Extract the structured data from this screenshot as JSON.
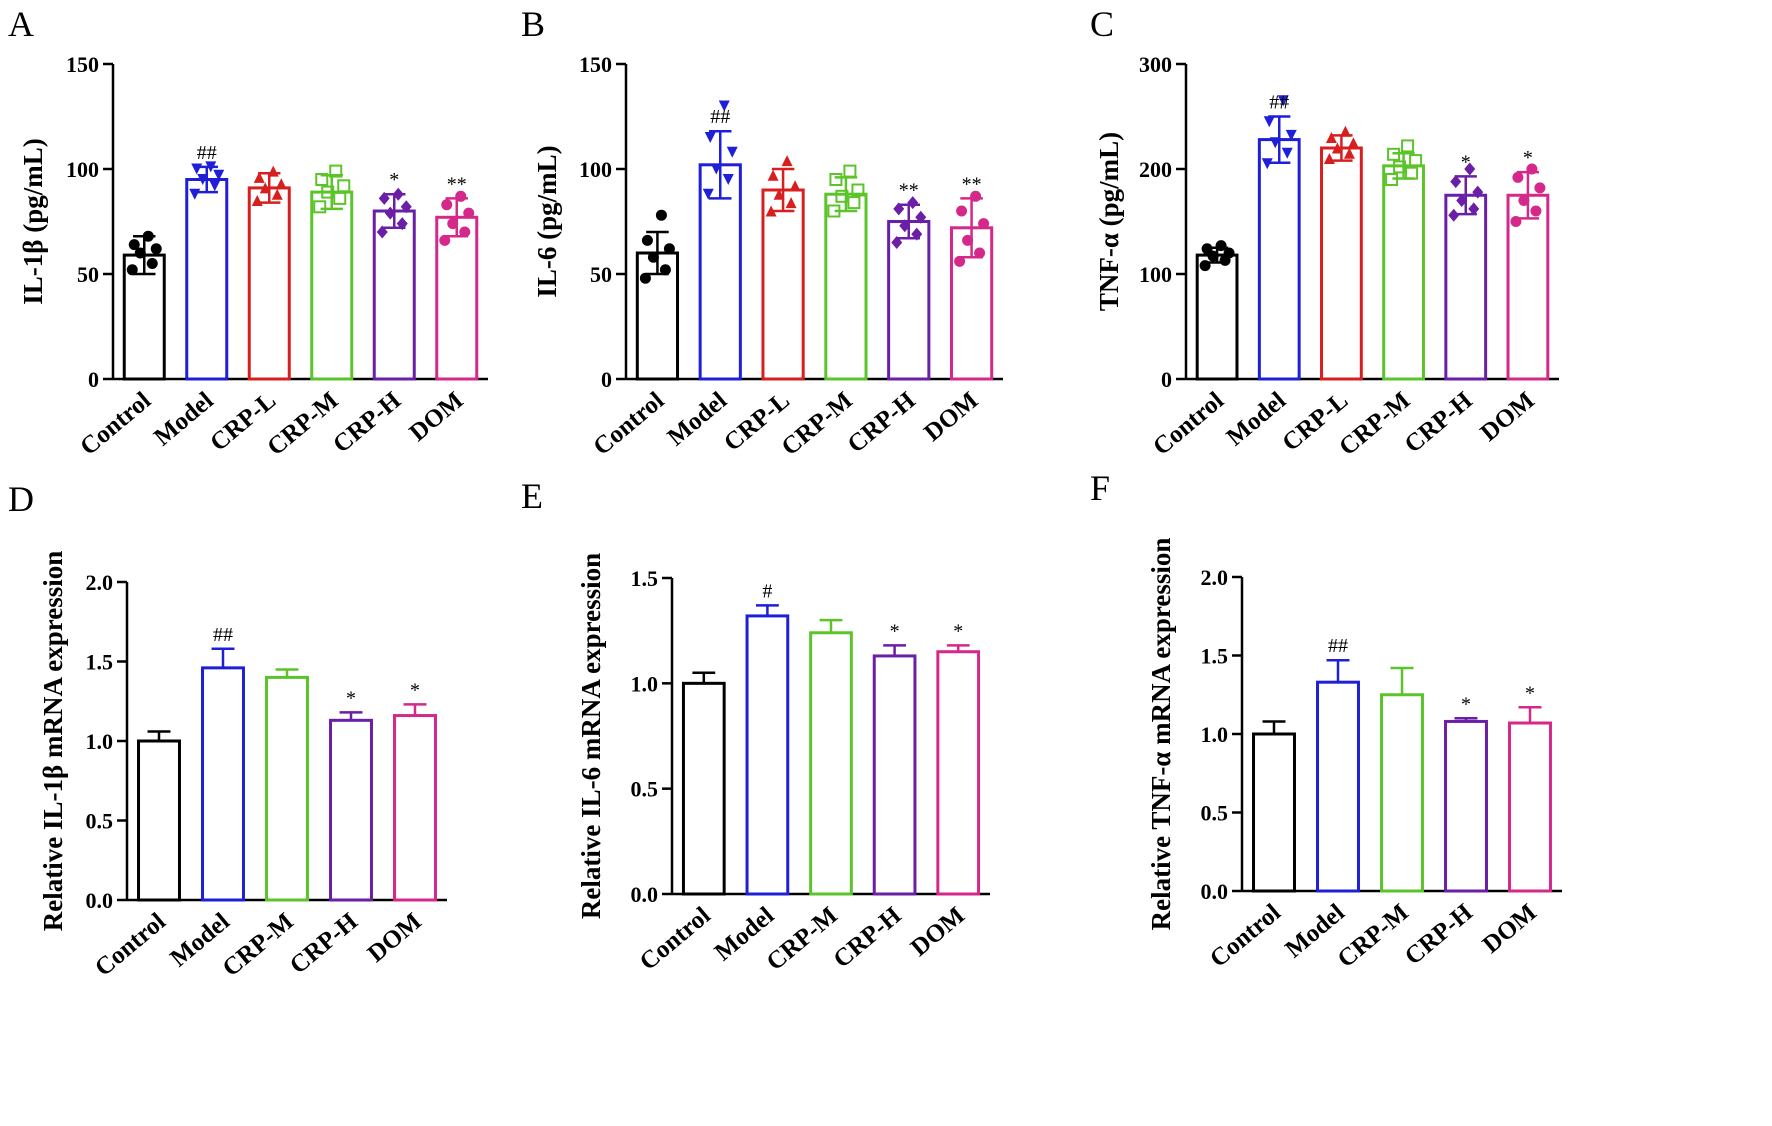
{
  "colors": {
    "Control": "#000000",
    "Model": "#1f1fd8",
    "CRP-L": "#d81f1f",
    "CRP-M": "#5cc42b",
    "CRP-H": "#6b1fa6",
    "DOM": "#d4288a"
  },
  "chart_data": [
    {
      "panel": "A",
      "type": "bar",
      "ylabel": "IL-1β (pg/mL)",
      "ylim": [
        0,
        150
      ],
      "yticks": [
        "0",
        "50",
        "100",
        "150"
      ],
      "categories": [
        "Control",
        "Model",
        "CRP-L",
        "CRP-M",
        "CRP-H",
        "DOM"
      ],
      "values": [
        59,
        95,
        91,
        89,
        80,
        77
      ],
      "errors": [
        9,
        6,
        7,
        8,
        8,
        9
      ],
      "significance": [
        "",
        "##",
        "",
        "",
        "*",
        "**"
      ],
      "points": [
        [
          52,
          55,
          60,
          62,
          64,
          68
        ],
        [
          88,
          92,
          95,
          97,
          100,
          101
        ],
        [
          85,
          88,
          91,
          93,
          96,
          99
        ],
        [
          82,
          86,
          89,
          92,
          95,
          99
        ],
        [
          70,
          74,
          79,
          82,
          86,
          88
        ],
        [
          66,
          70,
          74,
          79,
          83,
          87
        ]
      ],
      "scatter": true
    },
    {
      "panel": "B",
      "type": "bar",
      "ylabel": "IL-6 (pg/mL)",
      "ylim": [
        0,
        150
      ],
      "yticks": [
        "0",
        "50",
        "100",
        "150"
      ],
      "categories": [
        "Control",
        "Model",
        "CRP-L",
        "CRP-M",
        "CRP-H",
        "DOM"
      ],
      "values": [
        60,
        102,
        90,
        88,
        75,
        72
      ],
      "errors": [
        10,
        16,
        10,
        8,
        8,
        14
      ],
      "significance": [
        "",
        "##",
        "",
        "",
        "**",
        "**"
      ],
      "points": [
        [
          48,
          52,
          58,
          62,
          66,
          78
        ],
        [
          88,
          95,
          100,
          108,
          115,
          130
        ],
        [
          80,
          84,
          88,
          92,
          97,
          104
        ],
        [
          80,
          84,
          87,
          90,
          95,
          99
        ],
        [
          65,
          69,
          73,
          77,
          81,
          84
        ],
        [
          56,
          60,
          66,
          74,
          80,
          87
        ]
      ],
      "scatter": true
    },
    {
      "panel": "C",
      "type": "bar",
      "ylabel": "TNF-α (pg/mL)",
      "ylim": [
        0,
        300
      ],
      "yticks": [
        "0",
        "100",
        "200",
        "300"
      ],
      "categories": [
        "Control",
        "Model",
        "CRP-L",
        "CRP-M",
        "CRP-H",
        "DOM"
      ],
      "values": [
        118,
        228,
        220,
        203,
        175,
        175
      ],
      "errors": [
        7,
        22,
        12,
        12,
        18,
        22
      ],
      "significance": [
        "",
        "##",
        "",
        "",
        "*",
        "*"
      ],
      "points": [
        [
          108,
          113,
          117,
          120,
          124,
          127
        ],
        [
          205,
          215,
          225,
          232,
          245,
          265
        ],
        [
          210,
          215,
          220,
          225,
          230,
          236
        ],
        [
          190,
          196,
          202,
          208,
          214,
          222
        ],
        [
          156,
          162,
          170,
          178,
          188,
          200
        ],
        [
          150,
          160,
          170,
          182,
          192,
          200
        ]
      ],
      "scatter": true
    },
    {
      "panel": "D",
      "type": "bar",
      "ylabel": "Relative IL-1β  mRNA expression",
      "ylim": [
        0,
        2.0
      ],
      "yticks": [
        "0.0",
        "0.5",
        "1.0",
        "1.5",
        "2.0"
      ],
      "categories": [
        "Control",
        "Model",
        "CRP-M",
        "CRP-H",
        "DOM"
      ],
      "values": [
        1.0,
        1.46,
        1.4,
        1.13,
        1.16
      ],
      "errors": [
        0.06,
        0.12,
        0.05,
        0.05,
        0.07
      ],
      "significance": [
        "",
        "##",
        "",
        "*",
        "*"
      ],
      "scatter": false
    },
    {
      "panel": "E",
      "type": "bar",
      "ylabel": "Relative IL-6  mRNA expression",
      "ylim": [
        0,
        1.5
      ],
      "yticks": [
        "0.0",
        "0.5",
        "1.0",
        "1.5"
      ],
      "categories": [
        "Control",
        "Model",
        "CRP-M",
        "CRP-H",
        "DOM"
      ],
      "values": [
        1.0,
        1.32,
        1.24,
        1.13,
        1.15
      ],
      "errors": [
        0.05,
        0.05,
        0.06,
        0.05,
        0.03
      ],
      "significance": [
        "",
        "#",
        "",
        "*",
        "*"
      ],
      "scatter": false
    },
    {
      "panel": "F",
      "type": "bar",
      "ylabel": "Relative TNF-α  mRNA expression",
      "ylim": [
        0,
        2.0
      ],
      "yticks": [
        "0.0",
        "0.5",
        "1.0",
        "1.5",
        "2.0"
      ],
      "categories": [
        "Control",
        "Model",
        "CRP-M",
        "CRP-H",
        "DOM"
      ],
      "values": [
        1.0,
        1.33,
        1.25,
        1.08,
        1.07
      ],
      "errors": [
        0.08,
        0.14,
        0.17,
        0.02,
        0.1
      ],
      "significance": [
        "",
        "##",
        "",
        "*",
        "*"
      ],
      "scatter": false
    }
  ]
}
